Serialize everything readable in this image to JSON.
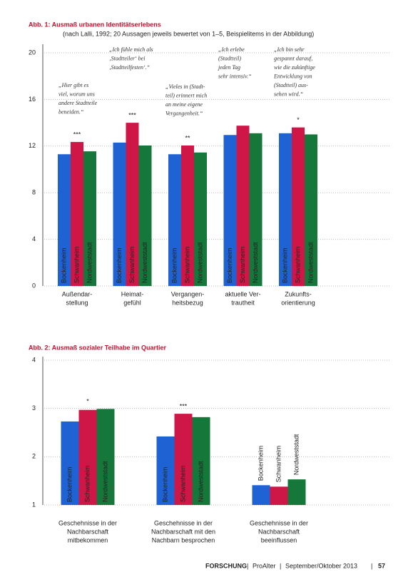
{
  "chart_data": [
    {
      "type": "bar",
      "title": "Abb. 1: Ausmaß urbanen Identitätserlebens",
      "subtitle": "(nach Lalli, 1992; 20 Aussagen jeweils bewertet von 1–5, Beispielitems in der Abbildung)",
      "categories": [
        [
          "Außendar-",
          "stellung"
        ],
        [
          "Heimat-",
          "gefühl"
        ],
        [
          "Vergangen-",
          "heitsbezug"
        ],
        [
          "aktuelle Ver-",
          "trautheit"
        ],
        [
          "Zukunfts-",
          "orientierung"
        ]
      ],
      "series": [
        {
          "name": "Bockenheim",
          "color": "#1f62d4",
          "values": [
            11.3,
            12.3,
            11.3,
            12.95,
            13.1
          ]
        },
        {
          "name": "Schwanheim",
          "color": "#cf1747",
          "values": [
            12.35,
            14.0,
            12.05,
            13.75,
            13.6
          ]
        },
        {
          "name": "Nordweststadt",
          "color": "#16773a",
          "values": [
            11.55,
            12.05,
            11.45,
            13.1,
            13.0
          ]
        }
      ],
      "significance": [
        "***",
        "***",
        "**",
        null,
        "*"
      ],
      "annotations": [
        [
          "„Hier gibt es",
          "viel, worum uns",
          "andere Stadtteile",
          "beneiden.“"
        ],
        [
          "„Ich fühle mich als",
          "‚Stadtteiler‘ bei",
          "‚Stadtteilfesten‘.“"
        ],
        [
          "„Vieles in (Stadt-",
          "teil) erinnert mich",
          "an meine eigene",
          "Vergangenheit.“"
        ],
        [
          "„Ich erlebe",
          "(Stadtteil)",
          "jeden Tag",
          "sehr intensiv.“"
        ],
        [
          "„Ich bin sehr",
          "gespannt darauf,",
          "wie die zukünftige",
          "Entwicklung von",
          "(Stadtteil) aus-",
          "sehen wird.“"
        ]
      ],
      "ylim": [
        0,
        20
      ],
      "yticks": [
        0,
        4,
        8,
        12,
        16,
        20
      ],
      "grid": true
    },
    {
      "type": "bar",
      "title": "Abb. 2: Ausmaß sozialer Teilhabe im Quartier",
      "categories": [
        [
          "Geschehnisse in der",
          "Nachbarschaft",
          "mitbekommen"
        ],
        [
          "Geschehnisse in der",
          "Nachbarschaft mit den",
          "Nachbarn besprochen"
        ],
        [
          "Geschehnisse in der",
          "Nachbarschaft",
          "beeinflussen"
        ]
      ],
      "series": [
        {
          "name": "Bockenheim",
          "color": "#1f62d4",
          "values": [
            2.73,
            2.42,
            1.41
          ]
        },
        {
          "name": "Schwanheim",
          "color": "#cf1747",
          "values": [
            2.97,
            2.89,
            1.38
          ]
        },
        {
          "name": "Nordweststadt",
          "color": "#16773a",
          "values": [
            2.99,
            2.82,
            1.53
          ]
        }
      ],
      "significance": [
        "*",
        "***",
        null
      ],
      "ylim": [
        1,
        4
      ],
      "yticks": [
        1,
        2,
        3,
        4
      ],
      "grid": true
    }
  ],
  "footer": {
    "section": "FORSCHUNG",
    "publication": "ProAlter",
    "issue": "September/Oktober 2013",
    "page": "57"
  }
}
